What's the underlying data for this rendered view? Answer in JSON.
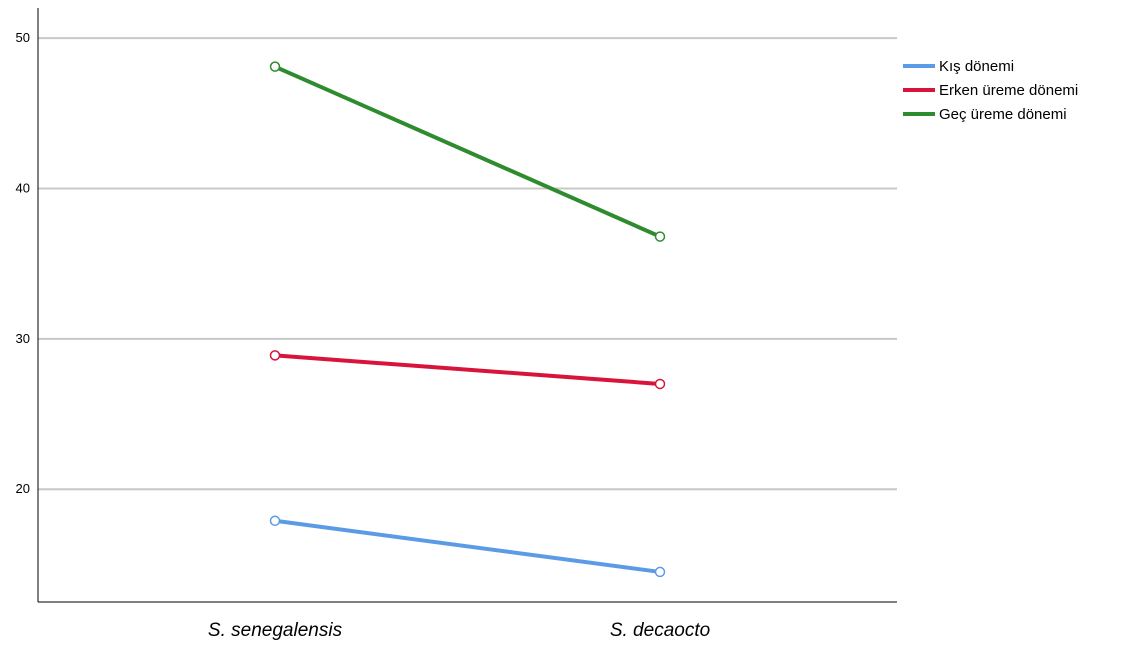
{
  "chart_data": {
    "type": "line",
    "categories": [
      "S. senegalensis",
      "S. decaocto"
    ],
    "ylim": [
      12.5,
      52
    ],
    "yticks": [
      20,
      30,
      40,
      50
    ],
    "ytick_labels": [
      "20",
      "30",
      "40",
      "50"
    ],
    "grid": true,
    "legend_position": "top-right",
    "series": [
      {
        "name": "Kış dönemi",
        "color": "#5b9be6",
        "values": [
          17.9,
          14.5
        ]
      },
      {
        "name": "Erken üreme dönemi",
        "color": "#d9143c",
        "values": [
          28.9,
          27.0
        ]
      },
      {
        "name": "Geç üreme dönemi",
        "color": "#2e8b2e",
        "values": [
          48.1,
          36.8
        ]
      }
    ]
  }
}
